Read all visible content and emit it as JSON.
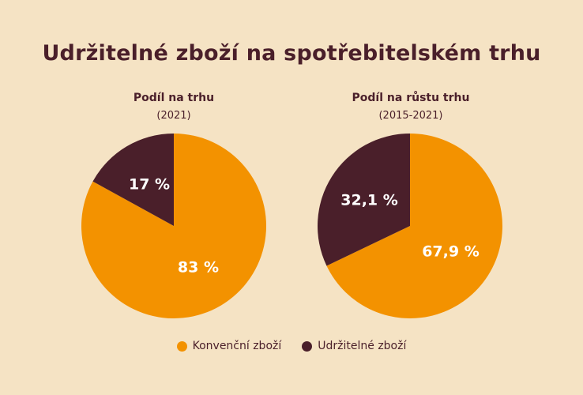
{
  "title": "Udržitelné zboží na spotřebitelském trhu",
  "colors": {
    "background": "#f5e3c4",
    "conventional": "#f39200",
    "sustainable": "#4a1f2a",
    "text": "#4a1f2a"
  },
  "legend": [
    {
      "label": "Konvenční zboží",
      "color": "#f39200"
    },
    {
      "label": "Udržitelné zboží",
      "color": "#4a1f2a"
    }
  ],
  "chart_data": [
    {
      "type": "pie",
      "title": "Podíl na trhu",
      "subtitle": "(2021)",
      "slices": [
        {
          "label": "Konvenční zboží",
          "value": 83,
          "display": "83 %",
          "color": "#f39200"
        },
        {
          "label": "Udržitelné zboží",
          "value": 17,
          "display": "17 %",
          "color": "#4a1f2a"
        }
      ]
    },
    {
      "type": "pie",
      "title": "Podíl na růstu trhu",
      "subtitle": "(2015-2021)",
      "slices": [
        {
          "label": "Konvenční zboží",
          "value": 67.9,
          "display": "67,9 %",
          "color": "#f39200"
        },
        {
          "label": "Udržitelné zboží",
          "value": 32.1,
          "display": "32,1 %",
          "color": "#4a1f2a"
        }
      ]
    }
  ]
}
